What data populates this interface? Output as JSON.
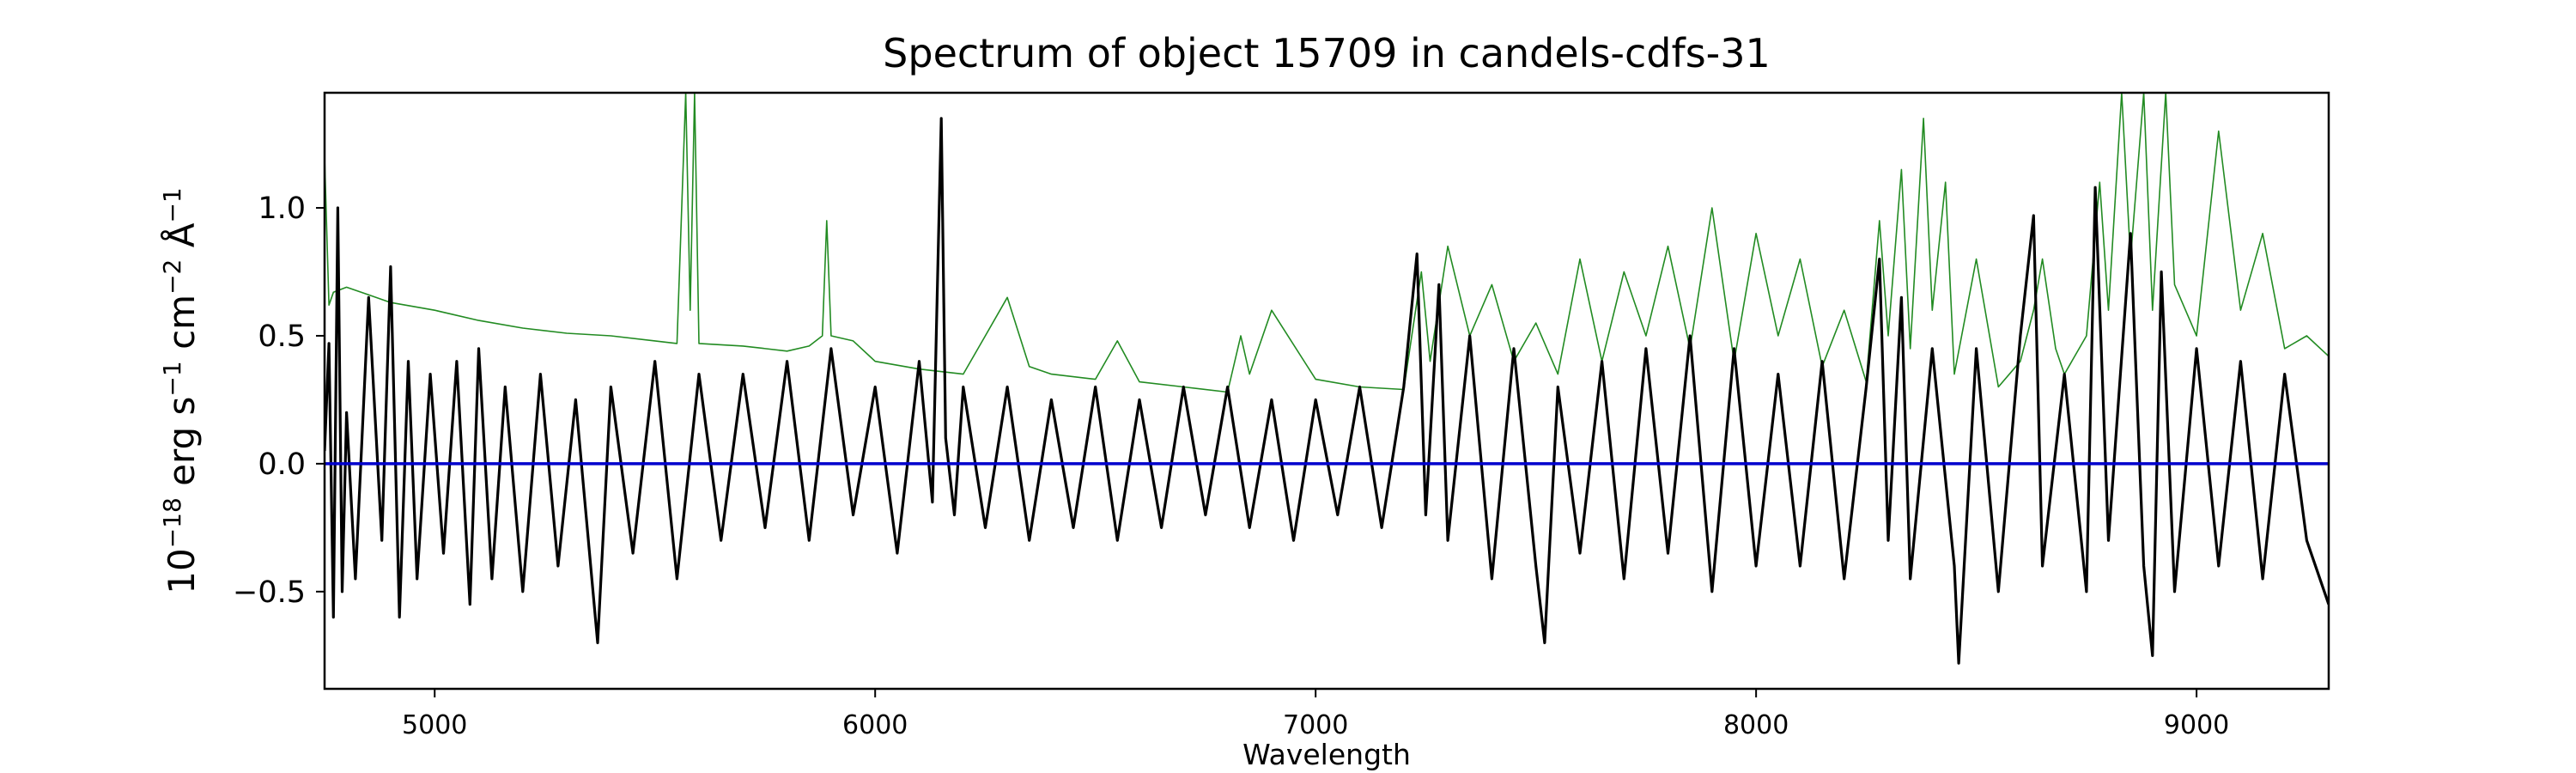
{
  "chart_data": {
    "type": "line",
    "title": "Spectrum of object 15709 in candels-cdfs-31",
    "xlabel": "Wavelength",
    "ylabel": {
      "prefix": "10",
      "exponent": "−18",
      "parts": [
        {
          "t": " erg s",
          "sup": false
        },
        {
          "t": "−1",
          "sup": true
        },
        {
          "t": " cm",
          "sup": false
        },
        {
          "t": "−2",
          "sup": true
        },
        {
          "t": " Å",
          "sup": false
        },
        {
          "t": "−1",
          "sup": true
        }
      ]
    },
    "xlim": [
      4750,
      9300
    ],
    "ylim": [
      -0.88,
      1.45
    ],
    "xticks": [
      5000,
      6000,
      7000,
      8000,
      9000
    ],
    "yticks": [
      -0.5,
      0.0,
      0.5,
      1.0
    ],
    "ytick_labels": [
      "−0.5",
      "0.0",
      "0.5",
      "1.0"
    ],
    "grid": false,
    "legend": "none",
    "colors": {
      "flux": "#000000",
      "error": "#228b22",
      "zero": "#0000cd"
    },
    "series": [
      {
        "role": "flux",
        "x": [
          4750,
          4760,
          4770,
          4780,
          4790,
          4800,
          4820,
          4850,
          4880,
          4900,
          4920,
          4940,
          4960,
          4990,
          5020,
          5050,
          5080,
          5100,
          5130,
          5160,
          5200,
          5240,
          5280,
          5320,
          5370,
          5400,
          5450,
          5500,
          5550,
          5600,
          5650,
          5700,
          5750,
          5800,
          5850,
          5900,
          5950,
          6000,
          6050,
          6100,
          6130,
          6150,
          6160,
          6180,
          6200,
          6250,
          6300,
          6350,
          6400,
          6450,
          6500,
          6550,
          6600,
          6650,
          6700,
          6750,
          6800,
          6850,
          6900,
          6950,
          7000,
          7050,
          7100,
          7150,
          7200,
          7230,
          7250,
          7280,
          7300,
          7350,
          7400,
          7450,
          7500,
          7520,
          7550,
          7600,
          7650,
          7700,
          7750,
          7800,
          7850,
          7900,
          7950,
          8000,
          8050,
          8100,
          8150,
          8200,
          8250,
          8280,
          8300,
          8330,
          8350,
          8400,
          8450,
          8460,
          8500,
          8550,
          8600,
          8630,
          8650,
          8700,
          8750,
          8770,
          8800,
          8850,
          8880,
          8900,
          8920,
          8950,
          9000,
          9050,
          9100,
          9150,
          9200,
          9250,
          9300
        ],
        "values": [
          0.05,
          0.47,
          -0.6,
          1.0,
          -0.5,
          0.2,
          -0.45,
          0.65,
          -0.3,
          0.77,
          -0.6,
          0.4,
          -0.45,
          0.35,
          -0.35,
          0.4,
          -0.55,
          0.45,
          -0.45,
          0.3,
          -0.5,
          0.35,
          -0.4,
          0.25,
          -0.7,
          0.3,
          -0.35,
          0.4,
          -0.45,
          0.35,
          -0.3,
          0.35,
          -0.25,
          0.4,
          -0.3,
          0.45,
          -0.2,
          0.3,
          -0.35,
          0.4,
          -0.15,
          1.35,
          0.1,
          -0.2,
          0.3,
          -0.25,
          0.3,
          -0.3,
          0.25,
          -0.25,
          0.3,
          -0.3,
          0.25,
          -0.25,
          0.3,
          -0.2,
          0.3,
          -0.25,
          0.25,
          -0.3,
          0.25,
          -0.2,
          0.3,
          -0.25,
          0.3,
          0.82,
          -0.2,
          0.7,
          -0.3,
          0.5,
          -0.45,
          0.45,
          -0.4,
          -0.7,
          0.3,
          -0.35,
          0.4,
          -0.45,
          0.45,
          -0.35,
          0.5,
          -0.5,
          0.45,
          -0.4,
          0.35,
          -0.4,
          0.4,
          -0.45,
          0.3,
          0.8,
          -0.3,
          0.65,
          -0.45,
          0.45,
          -0.4,
          -0.78,
          0.45,
          -0.5,
          0.5,
          0.97,
          -0.4,
          0.35,
          -0.5,
          1.08,
          -0.3,
          0.9,
          -0.4,
          -0.75,
          0.75,
          -0.5,
          0.45,
          -0.4,
          0.4,
          -0.45,
          0.35,
          -0.3,
          -0.55
        ]
      },
      {
        "role": "error",
        "x": [
          4750,
          4760,
          4770,
          4800,
          4850,
          4900,
          5000,
          5100,
          5200,
          5300,
          5400,
          5500,
          5550,
          5570,
          5580,
          5590,
          5600,
          5700,
          5800,
          5850,
          5880,
          5890,
          5900,
          5950,
          6000,
          6100,
          6200,
          6250,
          6300,
          6350,
          6400,
          6500,
          6550,
          6600,
          6700,
          6800,
          6830,
          6850,
          6900,
          7000,
          7100,
          7200,
          7240,
          7260,
          7300,
          7350,
          7400,
          7450,
          7500,
          7550,
          7600,
          7650,
          7700,
          7750,
          7800,
          7850,
          7900,
          7950,
          8000,
          8050,
          8100,
          8150,
          8200,
          8250,
          8280,
          8300,
          8330,
          8350,
          8380,
          8400,
          8430,
          8450,
          8500,
          8550,
          8600,
          8630,
          8650,
          8680,
          8700,
          8750,
          8780,
          8800,
          8830,
          8850,
          8880,
          8900,
          8930,
          8950,
          9000,
          9050,
          9100,
          9150,
          9200,
          9250,
          9300
        ],
        "values": [
          1.2,
          0.62,
          0.67,
          0.69,
          0.66,
          0.63,
          0.6,
          0.56,
          0.53,
          0.51,
          0.5,
          0.48,
          0.47,
          1.45,
          0.6,
          1.45,
          0.47,
          0.46,
          0.44,
          0.46,
          0.5,
          0.95,
          0.5,
          0.48,
          0.4,
          0.37,
          0.35,
          0.5,
          0.65,
          0.38,
          0.35,
          0.33,
          0.48,
          0.32,
          0.3,
          0.28,
          0.5,
          0.35,
          0.6,
          0.33,
          0.3,
          0.29,
          0.75,
          0.4,
          0.85,
          0.5,
          0.7,
          0.4,
          0.55,
          0.35,
          0.8,
          0.4,
          0.75,
          0.5,
          0.85,
          0.45,
          1.0,
          0.4,
          0.9,
          0.5,
          0.8,
          0.38,
          0.6,
          0.32,
          0.95,
          0.5,
          1.15,
          0.45,
          1.35,
          0.6,
          1.1,
          0.35,
          0.8,
          0.3,
          0.4,
          0.6,
          0.8,
          0.45,
          0.35,
          0.5,
          1.1,
          0.6,
          1.45,
          0.8,
          1.45,
          0.6,
          1.45,
          0.7,
          0.5,
          1.3,
          0.6,
          0.9,
          0.45,
          0.5,
          0.42
        ]
      },
      {
        "role": "zero",
        "x": [
          4750,
          9300
        ],
        "values": [
          0.0,
          0.0
        ]
      }
    ]
  }
}
